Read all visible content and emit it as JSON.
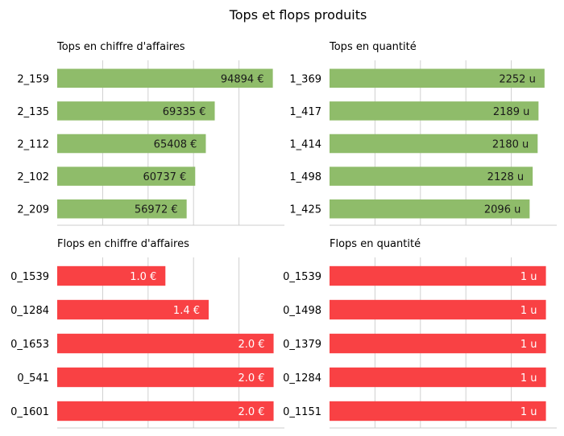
{
  "suptitle": "Tops et flops produits",
  "chart_data": [
    {
      "type": "bar",
      "orientation": "horizontal",
      "title": "Tops en chiffre d'affaires",
      "categories": [
        "2_159",
        "2_135",
        "2_112",
        "2_102",
        "2_209"
      ],
      "values": [
        94894,
        69335,
        65408,
        60737,
        56972
      ],
      "value_labels": [
        "94894 €",
        "69335 €",
        "65408 €",
        "60737 €",
        "56972 €"
      ],
      "xlim": [
        0,
        100000
      ],
      "grid": true,
      "bar_color": "#8fbc6a",
      "label_color": "#1a1a1a"
    },
    {
      "type": "bar",
      "orientation": "horizontal",
      "title": "Tops en quantité",
      "categories": [
        "1_369",
        "1_417",
        "1_414",
        "1_498",
        "1_425"
      ],
      "values": [
        2252,
        2189,
        2180,
        2128,
        2096
      ],
      "value_labels": [
        "2252 u",
        "2189 u",
        "2180 u",
        "2128 u",
        "2096 u"
      ],
      "xlim": [
        0,
        2380
      ],
      "grid": true,
      "bar_color": "#8fbc6a",
      "label_color": "#1a1a1a"
    },
    {
      "type": "bar",
      "orientation": "horizontal",
      "title": "Flops en chiffre d'affaires",
      "categories": [
        "0_1539",
        "0_1284",
        "0_1653",
        "0_541",
        "0_1601"
      ],
      "values": [
        1.0,
        1.4,
        2.0,
        2.0,
        2.0
      ],
      "value_labels": [
        "1.0 €",
        "1.4 €",
        "2.0 €",
        "2.0 €",
        "2.0 €"
      ],
      "xlim": [
        0,
        2.1
      ],
      "grid": true,
      "bar_color": "#f94144",
      "label_color": "#ffffff"
    },
    {
      "type": "bar",
      "orientation": "horizontal",
      "title": "Flops en quantité",
      "categories": [
        "0_1539",
        "0_1498",
        "0_1379",
        "0_1284",
        "0_1151"
      ],
      "values": [
        1,
        1,
        1,
        1,
        1
      ],
      "value_labels": [
        "1 u",
        "1 u",
        "1 u",
        "1 u",
        "1 u"
      ],
      "xlim": [
        0,
        1.05
      ],
      "grid": true,
      "bar_color": "#f94144",
      "label_color": "#ffffff"
    }
  ]
}
